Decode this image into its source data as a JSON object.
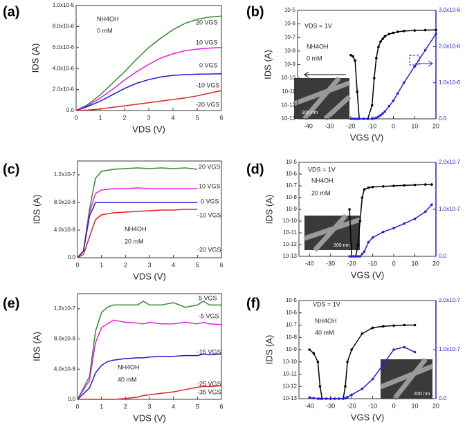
{
  "chart_data": [
    {
      "type": "line",
      "panel": "(a)",
      "xlabel": "VDS (V)",
      "ylabel": "IDS (A)",
      "x": [
        0,
        0.5,
        1,
        1.5,
        2,
        2.5,
        3,
        3.5,
        4,
        4.5,
        5,
        5.5,
        6
      ],
      "series": [
        {
          "color": "#2e8b2e",
          "values": [
            0,
            6e-07,
            1.5e-06,
            2.6e-06,
            3.7e-06,
            4.9e-06,
            6e-06,
            6.9e-06,
            7.7e-06,
            8.3e-06,
            8.7e-06,
            8.9e-06,
            9e-06
          ]
        },
        {
          "color": "#e020e0",
          "values": [
            0,
            5e-07,
            1.2e-06,
            2e-06,
            2.9e-06,
            3.7e-06,
            4.4e-06,
            5e-06,
            5.4e-06,
            5.7e-06,
            5.85e-06,
            5.95e-06,
            6e-06
          ]
        },
        {
          "color": "#1a1ad0",
          "values": [
            0,
            4e-07,
            9e-07,
            1.5e-06,
            2.1e-06,
            2.6e-06,
            2.95e-06,
            3.2e-06,
            3.35e-06,
            3.42e-06,
            3.46e-06,
            3.48e-06,
            3.5e-06
          ]
        },
        {
          "color": "#e02020",
          "values": [
            0,
            5e-08,
            1.5e-07,
            3e-07,
            4.5e-07,
            6e-07,
            7.5e-07,
            9e-07,
            1.05e-06,
            1.2e-06,
            1.4e-06,
            1.65e-06,
            1.9e-06
          ]
        }
      ],
      "xlim": [
        0,
        6
      ],
      "xticks": [
        0,
        1,
        2,
        3,
        4,
        5,
        6
      ],
      "ylim": [
        0,
        1e-05
      ],
      "yticks": [
        {
          "value": 0,
          "label": "0.0"
        },
        {
          "value": 2e-06,
          "label": "2.0x10-6"
        },
        {
          "value": 4e-06,
          "label": "4.0x10-6"
        },
        {
          "value": 6e-06,
          "label": "6.0x10-6"
        },
        {
          "value": 8e-06,
          "label": "8.0x10-6"
        },
        {
          "value": 1e-05,
          "label": "1.0x10-5"
        }
      ],
      "annotations": [
        "20 VGS",
        "10 VGS",
        "0 VGS",
        "-10 VGS",
        "-20 VGS",
        "NH4OH",
        "0 mM"
      ]
    },
    {
      "type": "scatter",
      "panel": "(b)",
      "xlabel": "VGS (V)",
      "ylabel": "IDS (A)",
      "ylog": true,
      "y2color": "#2020e0",
      "x": [
        -20,
        -19,
        -18,
        -17,
        -16,
        -14,
        -12,
        -10,
        -9,
        -8,
        -7,
        -6,
        -5,
        -4,
        -2,
        0,
        2,
        5,
        10,
        15,
        20
      ],
      "series": [
        {
          "color": "#000000",
          "values": [
            5e-09,
            4e-09,
            2e-09,
            1e-11,
            1e-13,
            1e-13,
            1e-13,
            1e-12,
            1e-10,
            3e-09,
            2e-08,
            5e-08,
            8e-08,
            1.2e-07,
            1.8e-07,
            2.2e-07,
            2.6e-07,
            3e-07,
            3.3e-07,
            3.5e-07,
            3.6e-07
          ]
        },
        {
          "color": "#2020e0",
          "axis": "y2",
          "values": [
            0,
            0,
            0,
            0,
            0,
            0,
            0,
            0,
            1e-08,
            3e-08,
            6e-08,
            1e-07,
            1.5e-07,
            2e-07,
            3.5e-07,
            5e-07,
            7e-07,
            1e-06,
            1.45e-06,
            1.9e-06,
            2.35e-06
          ]
        }
      ],
      "xlim": [
        -45,
        20
      ],
      "xticks": [
        -40,
        -30,
        -20,
        -10,
        0,
        10,
        20
      ],
      "ylim": [
        1e-13,
        1e-05
      ],
      "yticks": [
        {
          "value": 1e-13,
          "label": "10-13"
        },
        {
          "value": 1e-12,
          "label": "10-12"
        },
        {
          "value": 1e-11,
          "label": "10-11"
        },
        {
          "value": 1e-10,
          "label": "10-10"
        },
        {
          "value": 1e-09,
          "label": "10-9"
        },
        {
          "value": 1e-08,
          "label": "10-8"
        },
        {
          "value": 1e-07,
          "label": "10-7"
        },
        {
          "value": 1e-06,
          "label": "10-6"
        },
        {
          "value": 1e-05,
          "label": "10-5"
        }
      ],
      "y2lim": [
        0,
        3e-06
      ],
      "y2ticks": [
        {
          "value": 0,
          "label": "0.0"
        },
        {
          "value": 1e-06,
          "label": "1.0x10-6"
        },
        {
          "value": 2e-06,
          "label": "2.0x10-6"
        },
        {
          "value": 3e-06,
          "label": "3.0x10-6"
        }
      ],
      "annotations": [
        "VDS = 1V",
        "NH4OH",
        "0 mM",
        "300 nm"
      ]
    },
    {
      "type": "line",
      "panel": "(c)",
      "xlabel": "VDS (V)",
      "ylabel": "IDS (A)",
      "x": [
        0,
        0.25,
        0.5,
        0.75,
        1,
        1.5,
        2,
        2.5,
        3,
        3.5,
        4,
        4.5,
        5
      ],
      "series": [
        {
          "color": "#2e8b2e",
          "values": [
            0,
            1e-08,
            7e-08,
            1.15e-07,
            1.25e-07,
            1.28e-07,
            1.29e-07,
            1.3e-07,
            1.29e-07,
            1.3e-07,
            1.29e-07,
            1.3e-07,
            1.28e-07
          ]
        },
        {
          "color": "#e020e0",
          "values": [
            0,
            1e-08,
            6.5e-08,
            9.3e-08,
            9.8e-08,
            1e-07,
            1e-07,
            1.01e-07,
            1e-07,
            1e-07,
            1e-07,
            1e-07,
            1e-07
          ]
        },
        {
          "color": "#1a1ad0",
          "values": [
            0,
            1e-08,
            6e-08,
            8e-08,
            8e-08,
            8e-08,
            8e-08,
            8e-08,
            8e-08,
            8e-08,
            8e-08,
            8e-08,
            8e-08
          ]
        },
        {
          "color": "#e02020",
          "values": [
            0,
            5e-09,
            3e-08,
            5.5e-08,
            6.2e-08,
            6.5e-08,
            6.6e-08,
            6.7e-08,
            6.8e-08,
            6.9e-08,
            6.9e-08,
            7e-08,
            7e-08
          ]
        }
      ],
      "xlim": [
        0,
        6
      ],
      "xticks": [
        0,
        1,
        2,
        3,
        4,
        5,
        6
      ],
      "ylim": [
        0,
        1.4e-07
      ],
      "yticks": [
        {
          "value": 0,
          "label": "0.0"
        },
        {
          "value": 4e-08,
          "label": "4.0x10-8"
        },
        {
          "value": 8e-08,
          "label": "8.0x10-8"
        },
        {
          "value": 1.2e-07,
          "label": "1.2x10-7"
        }
      ],
      "annotations": [
        "20 VGS",
        "10 VGS",
        "0 VGS",
        "-10 VGS",
        "-20 VGS",
        "NH4OH",
        "20 mM"
      ]
    },
    {
      "type": "scatter",
      "panel": "(d)",
      "xlabel": "VGS (V)",
      "ylabel": "IDS (A)",
      "ylog": true,
      "y2color": "#2020e0",
      "x": [
        -21,
        -20,
        -19,
        -18,
        -17,
        -16,
        -15,
        -14,
        -12,
        -10,
        -5,
        0,
        5,
        10,
        15,
        18
      ],
      "series": [
        {
          "color": "#000000",
          "values": [
            1e-09,
            1e-13,
            1e-13,
            1e-13,
            1e-12,
            1e-10,
            1e-08,
            5e-08,
            7e-08,
            8e-08,
            9e-08,
            1e-07,
            1.1e-07,
            1.2e-07,
            1.3e-07,
            1.3e-07
          ]
        },
        {
          "color": "#2020e0",
          "axis": "y2",
          "values": [
            0,
            0,
            0,
            0,
            0,
            0,
            5e-09,
            1e-08,
            3e-08,
            4e-08,
            5.2e-08,
            6e-08,
            7e-08,
            8e-08,
            9.5e-08,
            1.1e-07
          ]
        }
      ],
      "xlim": [
        -45,
        20
      ],
      "xticks": [
        -40,
        -30,
        -20,
        -10,
        0,
        10,
        20
      ],
      "ylim": [
        1e-13,
        1e-05
      ],
      "yticks": [
        {
          "value": 1e-13,
          "label": "10-13"
        },
        {
          "value": 1e-12,
          "label": "10-12"
        },
        {
          "value": 1e-11,
          "label": "10-11"
        },
        {
          "value": 1e-10,
          "label": "10-10"
        },
        {
          "value": 1e-09,
          "label": "10-9"
        },
        {
          "value": 1e-08,
          "label": "10-8"
        },
        {
          "value": 1e-07,
          "label": "10-7"
        },
        {
          "value": 1e-06,
          "label": "10-6"
        },
        {
          "value": 1e-05,
          "label": "10-5"
        }
      ],
      "y2lim": [
        0,
        2e-07
      ],
      "y2ticks": [
        {
          "value": 0,
          "label": "0.0"
        },
        {
          "value": 1e-07,
          "label": "1.0x10-7"
        },
        {
          "value": 2e-07,
          "label": "2.0x10-7"
        }
      ],
      "annotations": [
        "VDS = 1V",
        "NH4OH",
        "20 mM",
        "300 nm"
      ]
    },
    {
      "type": "line",
      "panel": "(e)",
      "xlabel": "VDS (V)",
      "ylabel": "IDS (A)",
      "x": [
        0,
        0.5,
        0.75,
        1,
        1.25,
        1.5,
        2,
        2.5,
        2.75,
        3,
        3.5,
        4,
        4.5,
        5,
        5.25,
        5.5,
        6
      ],
      "series": [
        {
          "color": "#2e8b2e",
          "values": [
            0,
            3e-08,
            9e-08,
            1.15e-07,
            1.22e-07,
            1.25e-07,
            1.25e-07,
            1.25e-07,
            1.3e-07,
            1.25e-07,
            1.25e-07,
            1.28e-07,
            1.22e-07,
            1.25e-07,
            1.3e-07,
            1.25e-07,
            1.25e-07
          ]
        },
        {
          "color": "#e020e0",
          "values": [
            0,
            2.5e-08,
            7.5e-08,
            9.5e-08,
            1e-07,
            1.05e-07,
            1.02e-07,
            1.01e-07,
            1e-07,
            1.02e-07,
            1e-07,
            1e-07,
            1.02e-07,
            1e-07,
            1.02e-07,
            1e-07,
            9.9e-08
          ]
        },
        {
          "color": "#1a1ad0",
          "values": [
            0,
            1.5e-08,
            3.5e-08,
            4.5e-08,
            5e-08,
            5.2e-08,
            5.4e-08,
            5.5e-08,
            5.5e-08,
            5.6e-08,
            5.7e-08,
            5.7e-08,
            5.8e-08,
            5.8e-08,
            6e-08,
            5.9e-08,
            6e-08
          ]
        },
        {
          "color": "#e02020",
          "values": [
            0,
            0,
            0,
            0,
            0,
            0,
            1e-09,
            3e-09,
            5e-09,
            6e-09,
            8e-09,
            1e-08,
            1.3e-08,
            1.6e-08,
            1.7e-08,
            1.7e-08,
            1.8e-08
          ]
        }
      ],
      "xlim": [
        0,
        6
      ],
      "xticks": [
        0,
        1,
        2,
        3,
        4,
        5,
        6
      ],
      "ylim": [
        0,
        1.4e-07
      ],
      "yticks": [
        {
          "value": 0,
          "label": "0,0"
        },
        {
          "value": 4e-08,
          "label": "4,0x10-8"
        },
        {
          "value": 8e-08,
          "label": "8,0x10-8"
        },
        {
          "value": 1.2e-07,
          "label": "1,2x10-7"
        }
      ],
      "annotations": [
        "5 VGS",
        "-5 VGS",
        "-15 VGS",
        "-25 VGS",
        "-35 VGS",
        "NH4OH",
        "40 mM"
      ]
    },
    {
      "type": "scatter",
      "panel": "(f)",
      "xlabel": "VGS (V)",
      "ylabel": "IDS (A)",
      "ylog": true,
      "y2color": "#2020e0",
      "x": [
        -40,
        -38,
        -36,
        -35,
        -34,
        -32,
        -30,
        -28,
        -26,
        -24,
        -23,
        -22,
        -20,
        -15,
        -10,
        -5,
        0,
        5,
        10
      ],
      "series": [
        {
          "color": "#000000",
          "values": [
            1e-09,
            5e-10,
            1e-10,
            1e-12,
            1e-13,
            1e-13,
            1e-13,
            1e-13,
            1e-13,
            1e-13,
            1e-12,
            1e-10,
            1e-09,
            2e-08,
            6e-08,
            8e-08,
            9e-08,
            1e-07,
            1e-07
          ]
        },
        {
          "color": "#2020e0",
          "axis": "y2",
          "values": [
            2e-09,
            1e-09,
            0,
            0,
            0,
            0,
            0,
            0,
            0,
            0,
            1e-09,
            3e-09,
            8e-09,
            2e-08,
            4e-08,
            7e-08,
            1e-07,
            1.05e-07,
            9.5e-08
          ]
        }
      ],
      "xlim": [
        -45,
        20
      ],
      "xticks": [
        -40,
        -30,
        -20,
        -10,
        0,
        10,
        20
      ],
      "ylim": [
        1e-13,
        1e-05
      ],
      "yticks": [
        {
          "value": 1e-13,
          "label": "10-13"
        },
        {
          "value": 1e-12,
          "label": "10-12"
        },
        {
          "value": 1e-11,
          "label": "10-11"
        },
        {
          "value": 1e-10,
          "label": "10-10"
        },
        {
          "value": 1e-09,
          "label": "10-9"
        },
        {
          "value": 1e-08,
          "label": "10-8"
        },
        {
          "value": 1e-07,
          "label": "10-7"
        },
        {
          "value": 1e-06,
          "label": "10-6"
        },
        {
          "value": 1e-05,
          "label": "10-5"
        }
      ],
      "y2lim": [
        0,
        2e-07
      ],
      "y2ticks": [
        {
          "value": 0,
          "label": "0.0"
        },
        {
          "value": 1e-07,
          "label": "1.0x10-7"
        },
        {
          "value": 2e-07,
          "label": "2.0x10-7"
        }
      ],
      "annotations": [
        "VDS = 1V",
        "NH4OH",
        "40 mM",
        "200 nm"
      ]
    }
  ]
}
